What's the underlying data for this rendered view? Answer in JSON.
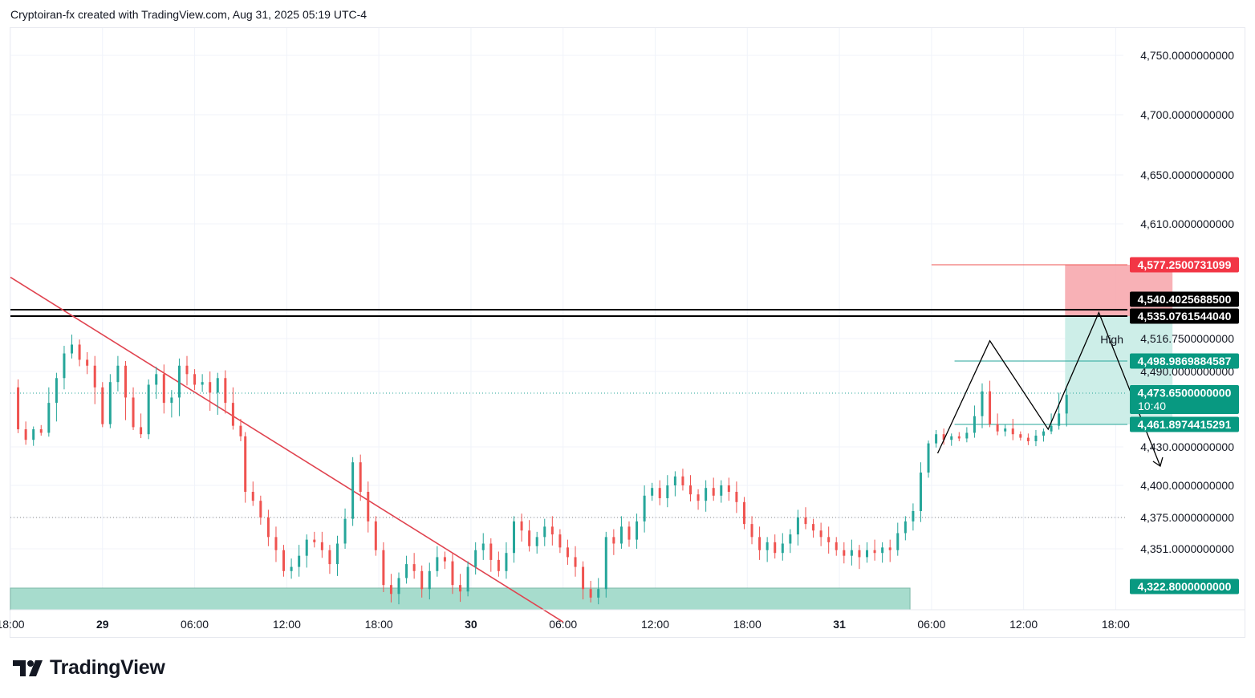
{
  "header": {
    "text": "Cryptoiran-fx created with TradingView.com, Aug 31, 2025 05:19 UTC-4"
  },
  "logo": {
    "name": "TradingView"
  },
  "colors": {
    "up": "#26a69a",
    "down": "#ef5350",
    "stop_zone": "#f7a9ae",
    "target_zone": "#cdeee8",
    "demand_zone": "#a7dccd",
    "trendline": "#e0434f",
    "grid": "#f0f3fa"
  },
  "chart_data": {
    "type": "candlestick",
    "title": "",
    "xlabel": "",
    "ylabel": "",
    "x_ticks": [
      {
        "label": "18:00",
        "bold": false
      },
      {
        "label": "29",
        "bold": true
      },
      {
        "label": "06:00",
        "bold": false
      },
      {
        "label": "12:00",
        "bold": false
      },
      {
        "label": "18:00",
        "bold": false
      },
      {
        "label": "30",
        "bold": true
      },
      {
        "label": "06:00",
        "bold": false
      },
      {
        "label": "12:00",
        "bold": false
      },
      {
        "label": "18:00",
        "bold": false
      },
      {
        "label": "31",
        "bold": true
      },
      {
        "label": "06:00",
        "bold": false
      },
      {
        "label": "12:00",
        "bold": false
      },
      {
        "label": "18:00",
        "bold": false
      }
    ],
    "x_range_hours": [
      -6.0,
      66.5
    ],
    "y_axis_ticks": [
      "4,750.0000000000",
      "4,700.0000000000",
      "4,650.0000000000",
      "4,610.0000000000",
      "4,516.7500000000",
      "4,490.0000000000",
      "4,430.0000000000",
      "4,400.0000000000",
      "4,375.0000000000",
      "4,351.0000000000"
    ],
    "y_tick_values": [
      4750,
      4700,
      4650,
      4610,
      4516.75,
      4490,
      4430,
      4400,
      4375,
      4351
    ],
    "price_tags": [
      {
        "label": "4,577.2500731099",
        "value": 4577.25,
        "style": "red"
      },
      {
        "label": "4,540.4025688500",
        "value": 4540.4,
        "style": "black"
      },
      {
        "label": "4,535.0761544040",
        "value": 4535.08,
        "style": "black"
      },
      {
        "label": "4,498.9869884587",
        "value": 4498.99,
        "style": "green"
      },
      {
        "label": "4,473.6500000000",
        "value": 4473.65,
        "style": "green",
        "sub": "10:40"
      },
      {
        "label": "4,461.8974415291",
        "value": 4461.9,
        "style": "green"
      },
      {
        "label": "4,322.8000000000",
        "value": 4322.8,
        "style": "green"
      }
    ],
    "high_label": "High",
    "candles_close_path": [
      [
        -5.9,
        4478
      ],
      [
        -5.5,
        4455
      ],
      [
        -5.0,
        4440
      ],
      [
        -4.5,
        4455
      ],
      [
        -4.0,
        4450
      ],
      [
        -3.5,
        4470
      ],
      [
        -3.0,
        4485
      ],
      [
        -2.5,
        4505
      ],
      [
        -2.0,
        4512
      ],
      [
        -1.5,
        4500
      ],
      [
        -1.0,
        4495
      ],
      [
        -0.5,
        4478
      ],
      [
        0.0,
        4462
      ],
      [
        0.5,
        4482
      ],
      [
        1.0,
        4495
      ],
      [
        1.5,
        4472
      ],
      [
        2.0,
        4458
      ],
      [
        2.5,
        4448
      ],
      [
        3.0,
        4480
      ],
      [
        3.5,
        4488
      ],
      [
        4.0,
        4470
      ],
      [
        4.5,
        4472
      ],
      [
        5.0,
        4495
      ],
      [
        5.5,
        4488
      ],
      [
        6.0,
        4480
      ],
      [
        6.5,
        4482
      ],
      [
        7.0,
        4474
      ],
      [
        7.5,
        4485
      ],
      [
        8.0,
        4470
      ],
      [
        8.5,
        4460
      ],
      [
        9.0,
        4445
      ],
      [
        9.3,
        4395
      ],
      [
        9.8,
        4388
      ],
      [
        10.3,
        4375
      ],
      [
        10.8,
        4360
      ],
      [
        11.3,
        4350
      ],
      [
        11.8,
        4335
      ],
      [
        12.3,
        4338
      ],
      [
        12.8,
        4346
      ],
      [
        13.3,
        4358
      ],
      [
        13.8,
        4356
      ],
      [
        14.3,
        4350
      ],
      [
        14.8,
        4340
      ],
      [
        15.3,
        4355
      ],
      [
        15.8,
        4374
      ],
      [
        16.3,
        4418
      ],
      [
        16.8,
        4395
      ],
      [
        17.3,
        4372
      ],
      [
        17.8,
        4350
      ],
      [
        18.3,
        4325
      ],
      [
        18.8,
        4318
      ],
      [
        19.3,
        4330
      ],
      [
        19.8,
        4340
      ],
      [
        20.3,
        4335
      ],
      [
        20.8,
        4322
      ],
      [
        21.3,
        4335
      ],
      [
        21.8,
        4345
      ],
      [
        22.3,
        4342
      ],
      [
        22.8,
        4325
      ],
      [
        23.3,
        4320
      ],
      [
        23.8,
        4338
      ],
      [
        24.3,
        4350
      ],
      [
        24.8,
        4355
      ],
      [
        25.3,
        4343
      ],
      [
        25.8,
        4335
      ],
      [
        26.3,
        4348
      ],
      [
        26.8,
        4372
      ],
      [
        27.3,
        4365
      ],
      [
        27.8,
        4353
      ],
      [
        28.3,
        4360
      ],
      [
        28.8,
        4368
      ],
      [
        29.3,
        4362
      ],
      [
        29.8,
        4352
      ],
      [
        30.3,
        4345
      ],
      [
        30.8,
        4338
      ],
      [
        31.3,
        4322
      ],
      [
        31.8,
        4315
      ],
      [
        32.3,
        4322
      ],
      [
        32.8,
        4360
      ],
      [
        33.3,
        4355
      ],
      [
        33.8,
        4368
      ],
      [
        34.3,
        4358
      ],
      [
        34.8,
        4372
      ],
      [
        35.3,
        4392
      ],
      [
        35.8,
        4398
      ],
      [
        36.3,
        4390
      ],
      [
        36.8,
        4400
      ],
      [
        37.3,
        4407
      ],
      [
        37.8,
        4400
      ],
      [
        38.3,
        4393
      ],
      [
        38.8,
        4388
      ],
      [
        39.3,
        4398
      ],
      [
        39.8,
        4392
      ],
      [
        40.3,
        4400
      ],
      [
        40.8,
        4395
      ],
      [
        41.3,
        4387
      ],
      [
        41.8,
        4370
      ],
      [
        42.3,
        4360
      ],
      [
        42.8,
        4350
      ],
      [
        43.3,
        4356
      ],
      [
        43.8,
        4348
      ],
      [
        44.3,
        4355
      ],
      [
        44.8,
        4362
      ],
      [
        45.3,
        4375
      ],
      [
        45.8,
        4370
      ],
      [
        46.3,
        4365
      ],
      [
        46.8,
        4360
      ],
      [
        47.3,
        4356
      ],
      [
        47.8,
        4350
      ],
      [
        48.3,
        4346
      ],
      [
        48.8,
        4350
      ],
      [
        49.3,
        4345
      ],
      [
        49.8,
        4350
      ],
      [
        50.3,
        4348
      ],
      [
        50.8,
        4352
      ],
      [
        51.3,
        4350
      ],
      [
        51.8,
        4363
      ],
      [
        52.3,
        4372
      ],
      [
        52.8,
        4380
      ],
      [
        53.3,
        4410
      ],
      [
        53.8,
        4435
      ],
      [
        54.3,
        4448
      ],
      [
        54.8,
        4440
      ],
      [
        55.3,
        4445
      ],
      [
        55.8,
        4442
      ],
      [
        56.3,
        4450
      ],
      [
        56.8,
        4465
      ],
      [
        57.3,
        4475
      ],
      [
        57.8,
        4462
      ],
      [
        58.3,
        4452
      ],
      [
        58.8,
        4456
      ],
      [
        59.3,
        4448
      ],
      [
        59.8,
        4443
      ],
      [
        60.3,
        4438
      ],
      [
        60.8,
        4446
      ],
      [
        61.3,
        4452
      ],
      [
        61.8,
        4460
      ],
      [
        62.3,
        4466
      ],
      [
        62.8,
        4473
      ]
    ],
    "trendline": [
      [
        -6.0,
        4567
      ],
      [
        30.0,
        4295
      ]
    ],
    "horizontal_lines": [
      4540.4,
      4535.08
    ],
    "dotted_lines": [
      4473.65,
      4375
    ],
    "stop_zone": {
      "x0": 62.7,
      "x1": 69.7,
      "y0": 4535.08,
      "y1": 4577.25
    },
    "target_zone": {
      "x0": 62.7,
      "x1": 69.7,
      "y0": 4461.9,
      "y1": 4535.08
    },
    "demand_zone": {
      "x0": -6.0,
      "x1": 52.6,
      "y0": 4305,
      "y1": 4322.8
    },
    "projection_path": [
      [
        54.4,
        4425
      ],
      [
        57.8,
        4515
      ],
      [
        61.6,
        4455
      ],
      [
        64.9,
        4538
      ],
      [
        68.9,
        4415
      ]
    ]
  }
}
